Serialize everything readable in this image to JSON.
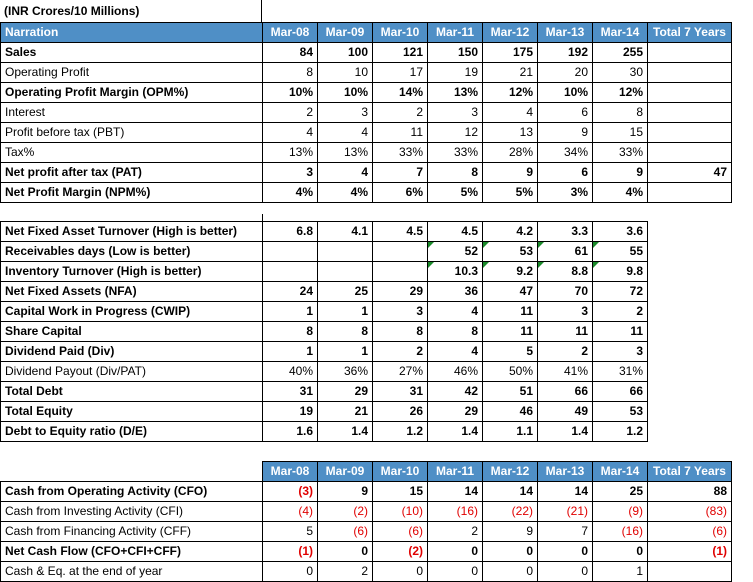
{
  "title": "(INR Crores/10 Millions)",
  "columns": [
    "Narration",
    "Mar-08",
    "Mar-09",
    "Mar-10",
    "Mar-11",
    "Mar-12",
    "Mar-13",
    "Mar-14",
    "Total 7 Years"
  ],
  "section1": [
    {
      "label": "Sales",
      "bold": true,
      "v": [
        "84",
        "100",
        "121",
        "150",
        "175",
        "192",
        "255",
        ""
      ]
    },
    {
      "label": "Operating Profit",
      "bold": false,
      "v": [
        "8",
        "10",
        "17",
        "19",
        "21",
        "20",
        "30",
        ""
      ]
    },
    {
      "label": "Operating Profit Margin (OPM%)",
      "bold": true,
      "v": [
        "10%",
        "10%",
        "14%",
        "13%",
        "12%",
        "10%",
        "12%",
        ""
      ]
    },
    {
      "label": "Interest",
      "bold": false,
      "v": [
        "2",
        "3",
        "2",
        "3",
        "4",
        "6",
        "8",
        ""
      ]
    },
    {
      "label": "Profit before tax (PBT)",
      "bold": false,
      "v": [
        "4",
        "4",
        "11",
        "12",
        "13",
        "9",
        "15",
        ""
      ]
    },
    {
      "label": "Tax%",
      "bold": false,
      "v": [
        "13%",
        "13%",
        "33%",
        "33%",
        "28%",
        "34%",
        "33%",
        ""
      ]
    },
    {
      "label": "Net profit after tax (PAT)",
      "bold": true,
      "v": [
        "3",
        "4",
        "7",
        "8",
        "9",
        "6",
        "9",
        "47"
      ]
    },
    {
      "label": "Net Profit Margin (NPM%)",
      "bold": true,
      "v": [
        "4%",
        "4%",
        "6%",
        "5%",
        "5%",
        "3%",
        "4%",
        ""
      ]
    }
  ],
  "section2": [
    {
      "label": "Net Fixed Asset Turnover (High is better)",
      "bold": true,
      "v": [
        "6.8",
        "4.1",
        "4.5",
        "4.5",
        "4.2",
        "3.3",
        "3.6"
      ]
    },
    {
      "label": "Receivables days (Low is better)",
      "bold": true,
      "v": [
        "",
        "",
        "",
        "52",
        "53",
        "61",
        "55"
      ]
    },
    {
      "label": "Inventory Turnover (High is better)",
      "bold": true,
      "v": [
        "",
        "",
        "",
        "10.3",
        "9.2",
        "8.8",
        "9.8"
      ]
    },
    {
      "label": "Net Fixed Assets (NFA)",
      "bold": true,
      "v": [
        "24",
        "25",
        "29",
        "36",
        "47",
        "70",
        "72"
      ]
    },
    {
      "label": "Capital Work in Progress (CWIP)",
      "bold": true,
      "v": [
        "1",
        "1",
        "3",
        "4",
        "11",
        "3",
        "2"
      ]
    },
    {
      "label": "Share Capital",
      "bold": true,
      "v": [
        "8",
        "8",
        "8",
        "8",
        "11",
        "11",
        "11"
      ]
    },
    {
      "label": "Dividend Paid (Div)",
      "bold": true,
      "v": [
        "1",
        "1",
        "2",
        "4",
        "5",
        "2",
        "3"
      ]
    },
    {
      "label": "Dividend Payout (Div/PAT)",
      "bold": false,
      "v": [
        "40%",
        "36%",
        "27%",
        "46%",
        "50%",
        "41%",
        "31%"
      ]
    },
    {
      "label": "Total Debt",
      "bold": true,
      "v": [
        "31",
        "29",
        "31",
        "42",
        "51",
        "66",
        "66"
      ]
    },
    {
      "label": "Total Equity",
      "bold": true,
      "v": [
        "19",
        "21",
        "26",
        "29",
        "46",
        "49",
        "53"
      ]
    },
    {
      "label": "Debt to Equity ratio (D/E)",
      "bold": true,
      "v": [
        "1.6",
        "1.4",
        "1.2",
        "1.4",
        "1.1",
        "1.4",
        "1.2"
      ]
    }
  ],
  "section3": [
    {
      "label": "Cash from Operating Activity (CFO)",
      "bold": true,
      "v": [
        "(3)",
        "9",
        "15",
        "14",
        "14",
        "14",
        "25",
        "88"
      ]
    },
    {
      "label": "Cash from Investing Activity (CFI)",
      "bold": false,
      "v": [
        "(4)",
        "(2)",
        "(10)",
        "(16)",
        "(22)",
        "(21)",
        "(9)",
        "(83)"
      ]
    },
    {
      "label": "Cash from Financing Activity (CFF)",
      "bold": false,
      "v": [
        "5",
        "(6)",
        "(6)",
        "2",
        "9",
        "7",
        "(16)",
        "(6)"
      ]
    },
    {
      "label": "Net Cash Flow (CFO+CFI+CFF)",
      "bold": true,
      "v": [
        "(1)",
        "0",
        "(2)",
        "0",
        "0",
        "0",
        "0",
        "(1)"
      ]
    },
    {
      "label": "Cash & Eq. at the end of year",
      "bold": false,
      "v": [
        "0",
        "2",
        "0",
        "0",
        "0",
        "0",
        "1",
        ""
      ]
    }
  ]
}
